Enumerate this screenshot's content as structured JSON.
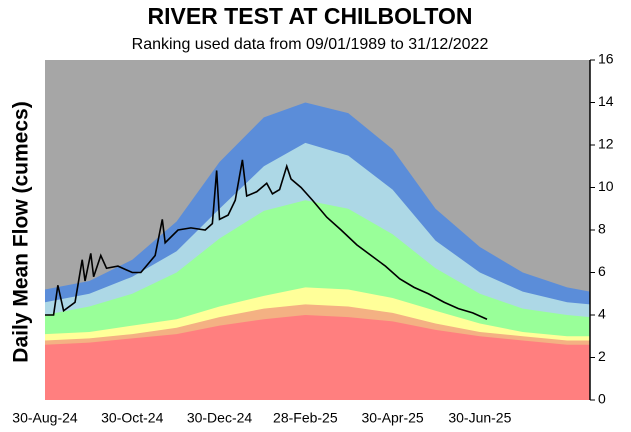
{
  "chart_data": {
    "type": "area",
    "title": "RIVER TEST AT CHILBOLTON",
    "subtitle": "Ranking used data from 09/01/1989 to 31/12/2022",
    "y_label": "Daily Mean Flow (cumecs)",
    "background_color": "#a6a6a6",
    "xlim": [
      "30-Aug-24",
      "15-Sep-25"
    ],
    "xticks": [
      "30-Aug-24",
      "30-Oct-24",
      "30-Dec-24",
      "28-Feb-25",
      "30-Apr-25",
      "30-Jun-25"
    ],
    "ylim": [
      0,
      16
    ],
    "yticks": [
      0,
      2,
      4,
      6,
      8,
      10,
      12,
      14,
      16
    ],
    "x": [
      "30-Aug-24",
      "30-Sep-24",
      "30-Oct-24",
      "30-Nov-24",
      "30-Dec-24",
      "30-Jan-25",
      "28-Feb-25",
      "30-Mar-25",
      "30-Apr-25",
      "30-May-25",
      "30-Jun-25",
      "30-Jul-25",
      "30-Aug-25",
      "15-Sep-25"
    ],
    "series": [
      {
        "color": "#5b8dd9",
        "values": [
          5.2,
          5.6,
          6.6,
          8.4,
          11.2,
          13.3,
          14.0,
          13.5,
          11.8,
          9.0,
          7.2,
          6.0,
          5.3,
          5.1
        ]
      },
      {
        "color": "#add8e6",
        "values": [
          4.6,
          5.0,
          5.8,
          7.0,
          9.0,
          11.0,
          12.1,
          11.5,
          9.9,
          7.5,
          6.0,
          5.1,
          4.6,
          4.5
        ]
      },
      {
        "color": "#99ff99",
        "values": [
          4.0,
          4.4,
          5.0,
          6.0,
          7.6,
          8.9,
          9.4,
          9.0,
          7.8,
          6.2,
          5.0,
          4.3,
          4.0,
          3.9
        ]
      },
      {
        "color": "#ffff99",
        "values": [
          3.1,
          3.2,
          3.5,
          3.8,
          4.4,
          4.9,
          5.3,
          5.2,
          4.8,
          4.2,
          3.6,
          3.2,
          3.0,
          3.0
        ]
      },
      {
        "color": "#f4b183",
        "values": [
          2.8,
          2.9,
          3.1,
          3.4,
          3.9,
          4.3,
          4.5,
          4.4,
          4.1,
          3.6,
          3.2,
          3.0,
          2.8,
          2.8
        ]
      },
      {
        "color": "#ff7f7f",
        "values": [
          2.6,
          2.7,
          2.9,
          3.1,
          3.5,
          3.8,
          4.0,
          3.9,
          3.7,
          3.3,
          3.0,
          2.8,
          2.6,
          2.6
        ]
      },
      {
        "type": "line",
        "color": "#000000",
        "x": [
          "30-Aug-24",
          "05-Sep-24",
          "08-Sep-24",
          "12-Sep-24",
          "20-Sep-24",
          "25-Sep-24",
          "27-Sep-24",
          "01-Oct-24",
          "03-Oct-24",
          "08-Oct-24",
          "12-Oct-24",
          "20-Oct-24",
          "30-Oct-24",
          "05-Nov-24",
          "15-Nov-24",
          "20-Nov-24",
          "22-Nov-24",
          "01-Dec-24",
          "10-Dec-24",
          "20-Dec-24",
          "25-Dec-24",
          "28-Dec-24",
          "30-Dec-24",
          "05-Jan-25",
          "10-Jan-25",
          "15-Jan-25",
          "18-Jan-25",
          "25-Jan-25",
          "01-Feb-25",
          "05-Feb-25",
          "10-Feb-25",
          "15-Feb-25",
          "18-Feb-25",
          "25-Feb-25",
          "05-Mar-25",
          "15-Mar-25",
          "25-Mar-25",
          "05-Apr-25",
          "15-Apr-25",
          "25-Apr-25",
          "05-May-25",
          "15-May-25",
          "25-May-25",
          "05-Jun-25",
          "15-Jun-25",
          "25-Jun-25",
          "05-Jul-25"
        ],
        "values": [
          4.0,
          4.0,
          5.4,
          4.2,
          4.6,
          6.6,
          5.6,
          6.9,
          5.8,
          6.8,
          6.2,
          6.3,
          6.0,
          6.0,
          6.8,
          8.5,
          7.4,
          8.0,
          8.1,
          8.0,
          8.3,
          10.8,
          8.5,
          8.7,
          9.4,
          11.3,
          9.6,
          9.8,
          10.2,
          9.7,
          9.9,
          11.0,
          10.4,
          10.0,
          9.4,
          8.6,
          8.0,
          7.3,
          6.8,
          6.3,
          5.7,
          5.3,
          5.0,
          4.6,
          4.3,
          4.1,
          3.8
        ]
      }
    ]
  }
}
